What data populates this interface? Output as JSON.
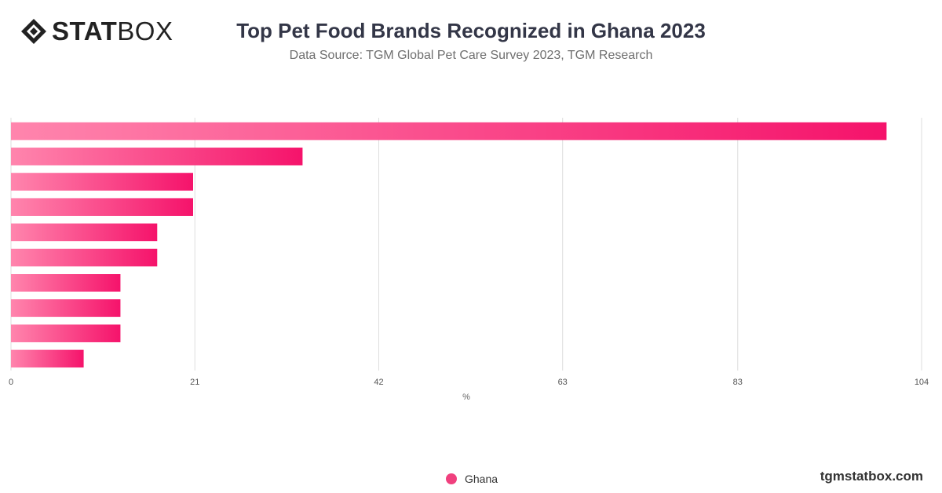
{
  "brand": {
    "logo_bold": "STAT",
    "logo_light": "BOX",
    "watermark": "tgmstatbox.com"
  },
  "header": {
    "title": "Top Pet Food Brands Recognized in Ghana 2023",
    "subtitle": "Data Source: TGM Global Pet Care Survey 2023, TGM Research"
  },
  "colors": {
    "bar_start": "#ff85ad",
    "bar_end": "#f5136b",
    "grid": "#dddddd",
    "legend_dot": "#f0407e"
  },
  "chart_data": {
    "type": "bar",
    "orientation": "horizontal",
    "categories": [
      "",
      "",
      "",
      "",
      "",
      "",
      "",
      "",
      "",
      ""
    ],
    "series": [
      {
        "name": "Ghana",
        "values": [
          100,
          33.3,
          20.8,
          20.8,
          16.7,
          16.7,
          12.5,
          12.5,
          12.5,
          8.3
        ]
      }
    ],
    "xlabel": "%",
    "ylabel": "",
    "xlim": [
      0,
      104
    ],
    "x_ticks": [
      "0",
      "21",
      "42",
      "63",
      "83",
      "104"
    ],
    "grid": true,
    "legend": "bottom-center"
  }
}
